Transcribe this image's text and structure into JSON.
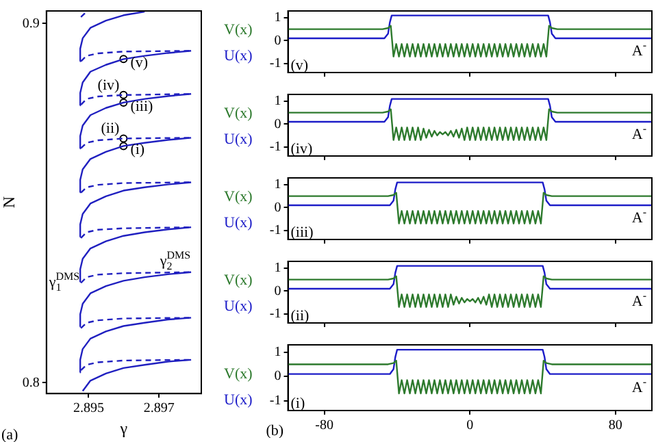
{
  "chart_data": [
    {
      "type": "line",
      "xlim": [
        2.8938,
        2.8982
      ],
      "xticks": [
        2.895,
        2.897
      ],
      "ylim": [
        0.797,
        0.9035
      ],
      "yticks": [
        0.8,
        0.9
      ],
      "xlabel": "γ",
      "ylabel": "N",
      "marker": "none",
      "series": [
        {
          "color": "#2020c0",
          "line_style": "solid",
          "x": [
            2.89475,
            2.89476,
            2.89483,
            2.89505,
            2.89549,
            2.89599,
            2.89659
          ],
          "values": [
            0.8895,
            0.893,
            0.8959,
            0.8988,
            0.9008,
            0.9023,
            0.9033
          ]
        },
        {
          "color": "#2020c0",
          "line_style": "solid",
          "x": [
            2.89475,
            2.89476,
            2.89483,
            2.89505,
            2.89549,
            2.89599,
            2.89659,
            2.89725,
            2.89791
          ],
          "values": [
            0.8772,
            0.8807,
            0.8836,
            0.8866,
            0.8885,
            0.8901,
            0.891,
            0.8918,
            0.8924
          ]
        },
        {
          "color": "#2020c0",
          "line_style": "solid",
          "x": [
            2.89475,
            2.89476,
            2.89483,
            2.89505,
            2.89549,
            2.89599,
            2.89659,
            2.89725,
            2.89791
          ],
          "values": [
            0.8652,
            0.8687,
            0.8716,
            0.8745,
            0.8765,
            0.878,
            0.879,
            0.8798,
            0.8804
          ]
        },
        {
          "color": "#2020c0",
          "line_style": "solid",
          "x": [
            2.89475,
            2.89476,
            2.89483,
            2.89505,
            2.89549,
            2.89599,
            2.89659,
            2.89725,
            2.89791
          ],
          "values": [
            0.853,
            0.8565,
            0.8594,
            0.8623,
            0.8643,
            0.8659,
            0.8668,
            0.8676,
            0.8682
          ]
        },
        {
          "color": "#2020c0",
          "line_style": "solid",
          "x": [
            2.89475,
            2.89476,
            2.89483,
            2.89505,
            2.89549,
            2.89599,
            2.89659,
            2.89725,
            2.89791
          ],
          "values": [
            0.8406,
            0.8441,
            0.847,
            0.8499,
            0.8519,
            0.8535,
            0.8544,
            0.8552,
            0.8558
          ]
        },
        {
          "color": "#2020c0",
          "line_style": "solid",
          "x": [
            2.89475,
            2.89476,
            2.89483,
            2.89505,
            2.89549,
            2.89599,
            2.89659,
            2.89725,
            2.89791
          ],
          "values": [
            0.8281,
            0.8316,
            0.8345,
            0.8374,
            0.8394,
            0.8409,
            0.8419,
            0.8427,
            0.8433
          ]
        },
        {
          "color": "#2020c0",
          "line_style": "solid",
          "x": [
            2.89475,
            2.89476,
            2.89483,
            2.89505,
            2.89549,
            2.89599,
            2.89659,
            2.89725,
            2.89791
          ],
          "values": [
            0.8156,
            0.8191,
            0.822,
            0.8249,
            0.8269,
            0.8284,
            0.8294,
            0.8302,
            0.8308
          ]
        },
        {
          "color": "#2020c0",
          "line_style": "solid",
          "x": [
            2.89475,
            2.89476,
            2.89483,
            2.89505,
            2.89549,
            2.89599,
            2.89659,
            2.89725,
            2.89791
          ],
          "values": [
            0.8029,
            0.8064,
            0.8094,
            0.8123,
            0.8143,
            0.8158,
            0.8167,
            0.8176,
            0.8181
          ]
        },
        {
          "color": "#2020c0",
          "line_style": "solid",
          "x": [
            2.89483,
            2.89505,
            2.89549,
            2.89599,
            2.89659,
            2.89725,
            2.89791
          ],
          "values": [
            0.7977,
            0.8006,
            0.8026,
            0.8041,
            0.805,
            0.8059,
            0.8064
          ]
        },
        {
          "color": "#2020c0",
          "line_style": "dashed",
          "x": [
            2.89478,
            2.89494
          ],
          "values": [
            0.9018,
            0.9033
          ]
        },
        {
          "color": "#2020c0",
          "line_style": "dashed",
          "x": [
            2.89478,
            2.89494,
            2.89527,
            2.89599,
            2.89791
          ],
          "values": [
            0.8895,
            0.891,
            0.8917,
            0.8922,
            0.8924
          ]
        },
        {
          "color": "#2020c0",
          "line_style": "dashed",
          "x": [
            2.89478,
            2.89494,
            2.89527,
            2.89599,
            2.89791
          ],
          "values": [
            0.8774,
            0.879,
            0.8797,
            0.8801,
            0.8804
          ]
        },
        {
          "color": "#2020c0",
          "line_style": "dashed",
          "x": [
            2.89478,
            2.89494,
            2.89527,
            2.89599,
            2.89791
          ],
          "values": [
            0.8653,
            0.8668,
            0.8675,
            0.868,
            0.8682
          ]
        },
        {
          "color": "#2020c0",
          "line_style": "dashed",
          "x": [
            2.89478,
            2.89494,
            2.89527,
            2.89599,
            2.89791
          ],
          "values": [
            0.8529,
            0.8544,
            0.8551,
            0.8556,
            0.8558
          ]
        },
        {
          "color": "#2020c0",
          "line_style": "dashed",
          "x": [
            2.89478,
            2.89494,
            2.89527,
            2.89599,
            2.89791
          ],
          "values": [
            0.8403,
            0.8419,
            0.8426,
            0.843,
            0.8433
          ]
        },
        {
          "color": "#2020c0",
          "line_style": "dashed",
          "x": [
            2.89478,
            2.89494,
            2.89527,
            2.89599,
            2.89791
          ],
          "values": [
            0.8278,
            0.8294,
            0.8301,
            0.8305,
            0.8308
          ]
        },
        {
          "color": "#2020c0",
          "line_style": "dashed",
          "x": [
            2.89478,
            2.89494,
            2.89527,
            2.89599,
            2.89791
          ],
          "values": [
            0.8152,
            0.8167,
            0.8174,
            0.8179,
            0.8181
          ]
        },
        {
          "color": "#2020c0",
          "line_style": "dashed",
          "x": [
            2.89478,
            2.89494,
            2.89527,
            2.89599,
            2.89791
          ],
          "values": [
            0.8035,
            0.805,
            0.8057,
            0.8062,
            0.8064
          ]
        },
        {
          "type": "scatter",
          "color": "#000000",
          "marker": "circle",
          "x": [
            2.89599,
            2.89599,
            2.89599,
            2.89599,
            2.89599
          ],
          "values": [
            0.8901,
            0.8801,
            0.878,
            0.868,
            0.8659
          ]
        }
      ],
      "annotations": [
        "(v)",
        "(iv)",
        "(iii)",
        "(ii)",
        "(i)",
        "γ$_{1}$$^{DMS}$",
        "γ$_{2}$$^{DMS}$",
        "(a)"
      ]
    },
    {
      "type": "line",
      "x": [
        -100,
        -48,
        -45,
        -43.5,
        -42,
        -40.5,
        -39,
        -37.5,
        -36,
        -34.5,
        -33,
        -31.5,
        -30,
        -28.5,
        -27,
        -25.5,
        -24,
        -22.5,
        -21,
        -19.5,
        -18,
        -16.5,
        -15,
        -13.5,
        -12,
        -10.5,
        -9,
        -7.5,
        -6,
        -4.5,
        -3,
        -1.5,
        0,
        1.5,
        3,
        4.5,
        6,
        7.5,
        9,
        10.5,
        12,
        13.5,
        15,
        16.5,
        18,
        19.5,
        21,
        22.5,
        24,
        25.5,
        27,
        28.5,
        30,
        31.5,
        33,
        34.5,
        36,
        37.5,
        39,
        40.5,
        42,
        43.5,
        45,
        48,
        100
      ],
      "xlim": [
        -100,
        100
      ],
      "xticks": [
        -80,
        0,
        80
      ],
      "ylim": [
        -1.4,
        1.3
      ],
      "yticks": [
        -1,
        0,
        1
      ],
      "tick_labels": "y",
      "legend": "left",
      "marker": "none",
      "series": [
        {
          "name": "V(x)",
          "color": "#2d7a2d",
          "values": [
            0.5,
            0.5,
            0.55,
            0.65,
            -0.7,
            -0.15,
            -0.7,
            -0.15,
            -0.7,
            -0.15,
            -0.7,
            -0.15,
            -0.7,
            -0.15,
            -0.7,
            -0.15,
            -0.7,
            -0.15,
            -0.7,
            -0.15,
            -0.7,
            -0.15,
            -0.7,
            -0.15,
            -0.7,
            -0.15,
            -0.7,
            -0.15,
            -0.7,
            -0.15,
            -0.7,
            -0.15,
            -0.7,
            -0.15,
            -0.7,
            -0.15,
            -0.7,
            -0.15,
            -0.7,
            -0.15,
            -0.7,
            -0.15,
            -0.7,
            -0.15,
            -0.7,
            -0.15,
            -0.7,
            -0.15,
            -0.7,
            -0.15,
            -0.7,
            -0.15,
            -0.7,
            -0.15,
            -0.7,
            -0.15,
            -0.7,
            -0.15,
            -0.7,
            -0.15,
            -0.7,
            0.65,
            0.55,
            0.5,
            0.5
          ]
        },
        {
          "name": "U(x)",
          "color": "#1c1cc8",
          "x": [
            -100,
            -47,
            -45,
            -44,
            -43,
            43,
            44,
            45,
            47,
            100
          ],
          "values": [
            0.1,
            0.1,
            0.3,
            0.8,
            1.1,
            1.1,
            0.8,
            0.3,
            0.1,
            0.1
          ]
        }
      ],
      "annotations": [
        "A$^{-}$",
        "(v)"
      ]
    },
    {
      "type": "line",
      "x": [
        -100,
        -48,
        -45,
        -43.5,
        -42,
        -40.5,
        -39,
        -37.5,
        -36,
        -34.5,
        -33,
        -31.5,
        -30,
        -28.5,
        -27,
        -25.5,
        -24,
        -22.5,
        -21,
        -19.5,
        -18,
        -16.5,
        -15,
        -13.5,
        -12,
        -10.5,
        -9,
        -7.5,
        -6,
        -4.5,
        -3,
        -1.5,
        0,
        1.5,
        3,
        4.5,
        6,
        7.5,
        9,
        10.5,
        12,
        13.5,
        15,
        16.5,
        18,
        19.5,
        21,
        22.5,
        24,
        25.5,
        27,
        28.5,
        30,
        31.5,
        33,
        34.5,
        36,
        37.5,
        39,
        40.5,
        42,
        43.5,
        45,
        48,
        100
      ],
      "xlim": [
        -100,
        100
      ],
      "xticks": [
        -80,
        0,
        80
      ],
      "ylim": [
        -1.4,
        1.3
      ],
      "yticks": [
        -1,
        0,
        1
      ],
      "tick_labels": "y",
      "legend": "left",
      "marker": "none",
      "series": [
        {
          "name": "V(x)",
          "color": "#2d7a2d",
          "values": [
            0.5,
            0.5,
            0.55,
            0.65,
            -0.7,
            -0.15,
            -0.7,
            -0.15,
            -0.7,
            -0.15,
            -0.7,
            -0.15,
            -0.7,
            -0.15,
            -0.7,
            -0.2,
            -0.6,
            -0.25,
            -0.55,
            -0.3,
            -0.5,
            -0.35,
            -0.45,
            -0.35,
            -0.5,
            -0.3,
            -0.55,
            -0.25,
            -0.6,
            -0.2,
            -0.7,
            -0.15,
            -0.7,
            -0.15,
            -0.7,
            -0.15,
            -0.7,
            -0.15,
            -0.7,
            -0.15,
            -0.7,
            -0.15,
            -0.7,
            -0.15,
            -0.7,
            -0.15,
            -0.7,
            -0.15,
            -0.7,
            -0.15,
            -0.7,
            -0.15,
            -0.7,
            -0.15,
            -0.7,
            -0.15,
            -0.7,
            -0.15,
            -0.7,
            -0.15,
            -0.7,
            0.65,
            0.55,
            0.5,
            0.5
          ]
        },
        {
          "name": "U(x)",
          "color": "#1c1cc8",
          "x": [
            -100,
            -47,
            -45,
            -44,
            -43,
            43,
            44,
            45,
            47,
            100
          ],
          "values": [
            0.1,
            0.1,
            0.3,
            0.8,
            1.1,
            1.1,
            0.8,
            0.3,
            0.1,
            0.1
          ]
        }
      ],
      "annotations": [
        "A$^{-}$",
        "(iv)"
      ]
    },
    {
      "type": "line",
      "x": [
        -100,
        -45,
        -42,
        -40.5,
        -39,
        -37.5,
        -36,
        -34.5,
        -33,
        -31.5,
        -30,
        -28.5,
        -27,
        -25.5,
        -24,
        -22.5,
        -21,
        -19.5,
        -18,
        -16.5,
        -15,
        -13.5,
        -12,
        -10.5,
        -9,
        -7.5,
        -6,
        -4.5,
        -3,
        -1.5,
        0,
        1.5,
        3,
        4.5,
        6,
        7.5,
        9,
        10.5,
        12,
        13.5,
        15,
        16.5,
        18,
        19.5,
        21,
        22.5,
        24,
        25.5,
        27,
        28.5,
        30,
        31.5,
        33,
        34.5,
        36,
        37.5,
        39,
        40.5,
        42,
        45,
        100
      ],
      "xlim": [
        -100,
        100
      ],
      "xticks": [
        -80,
        0,
        80
      ],
      "ylim": [
        -1.4,
        1.3
      ],
      "yticks": [
        -1,
        0,
        1
      ],
      "tick_labels": "y",
      "legend": "left",
      "marker": "none",
      "series": [
        {
          "name": "V(x)",
          "color": "#2d7a2d",
          "values": [
            0.5,
            0.5,
            0.55,
            0.65,
            -0.7,
            -0.15,
            -0.7,
            -0.15,
            -0.7,
            -0.15,
            -0.7,
            -0.15,
            -0.7,
            -0.15,
            -0.7,
            -0.15,
            -0.7,
            -0.15,
            -0.7,
            -0.15,
            -0.7,
            -0.15,
            -0.7,
            -0.15,
            -0.7,
            -0.15,
            -0.7,
            -0.15,
            -0.7,
            -0.15,
            -0.7,
            -0.15,
            -0.7,
            -0.15,
            -0.7,
            -0.15,
            -0.7,
            -0.15,
            -0.7,
            -0.15,
            -0.7,
            -0.15,
            -0.7,
            -0.15,
            -0.7,
            -0.15,
            -0.7,
            -0.15,
            -0.7,
            -0.15,
            -0.7,
            -0.15,
            -0.7,
            -0.15,
            -0.7,
            -0.15,
            -0.7,
            0.65,
            0.55,
            0.5,
            0.5
          ]
        },
        {
          "name": "U(x)",
          "color": "#1c1cc8",
          "x": [
            -100,
            -44,
            -42,
            -41,
            -40,
            40,
            41,
            42,
            44,
            100
          ],
          "values": [
            0.1,
            0.1,
            0.3,
            0.8,
            1.1,
            1.1,
            0.8,
            0.3,
            0.1,
            0.1
          ]
        }
      ],
      "annotations": [
        "A$^{-}$",
        "(iii)"
      ]
    },
    {
      "type": "line",
      "x": [
        -100,
        -45,
        -42,
        -40.5,
        -39,
        -37.5,
        -36,
        -34.5,
        -33,
        -31.5,
        -30,
        -28.5,
        -27,
        -25.5,
        -24,
        -22.5,
        -21,
        -19.5,
        -18,
        -16.5,
        -15,
        -13.5,
        -12,
        -10.5,
        -9,
        -7.5,
        -6,
        -4.5,
        -3,
        -1.5,
        0,
        1.5,
        3,
        4.5,
        6,
        7.5,
        9,
        10.5,
        12,
        13.5,
        15,
        16.5,
        18,
        19.5,
        21,
        22.5,
        24,
        25.5,
        27,
        28.5,
        30,
        31.5,
        33,
        34.5,
        36,
        37.5,
        39,
        40.5,
        42,
        45,
        100
      ],
      "xlim": [
        -100,
        100
      ],
      "xticks": [
        -80,
        0,
        80
      ],
      "ylim": [
        -1.4,
        1.3
      ],
      "yticks": [
        -1,
        0,
        1
      ],
      "tick_labels": "y",
      "legend": "left",
      "marker": "none",
      "series": [
        {
          "name": "V(x)",
          "color": "#2d7a2d",
          "values": [
            0.5,
            0.5,
            0.55,
            0.65,
            -0.7,
            -0.15,
            -0.7,
            -0.15,
            -0.7,
            -0.15,
            -0.7,
            -0.15,
            -0.7,
            -0.15,
            -0.7,
            -0.15,
            -0.7,
            -0.15,
            -0.7,
            -0.15,
            -0.7,
            -0.15,
            -0.7,
            -0.15,
            -0.6,
            -0.25,
            -0.55,
            -0.3,
            -0.5,
            -0.35,
            -0.45,
            -0.35,
            -0.5,
            -0.3,
            -0.55,
            -0.25,
            -0.6,
            -0.15,
            -0.7,
            -0.15,
            -0.7,
            -0.15,
            -0.7,
            -0.15,
            -0.7,
            -0.15,
            -0.7,
            -0.15,
            -0.7,
            -0.15,
            -0.7,
            -0.15,
            -0.7,
            -0.15,
            -0.7,
            -0.15,
            -0.7,
            0.65,
            0.55,
            0.5,
            0.5
          ]
        },
        {
          "name": "U(x)",
          "color": "#1c1cc8",
          "x": [
            -100,
            -44,
            -42,
            -41,
            -40,
            40,
            41,
            42,
            44,
            100
          ],
          "values": [
            0.1,
            0.1,
            0.3,
            0.8,
            1.1,
            1.1,
            0.8,
            0.3,
            0.1,
            0.1
          ]
        }
      ],
      "annotations": [
        "A$^{-}$",
        "(ii)"
      ]
    },
    {
      "type": "line",
      "x": [
        -100,
        -45,
        -42,
        -40.5,
        -39,
        -37.5,
        -36,
        -34.5,
        -33,
        -31.5,
        -30,
        -28.5,
        -27,
        -25.5,
        -24,
        -22.5,
        -21,
        -19.5,
        -18,
        -16.5,
        -15,
        -13.5,
        -12,
        -10.5,
        -9,
        -7.5,
        -6,
        -4.5,
        -3,
        -1.5,
        0,
        1.5,
        3,
        4.5,
        6,
        7.5,
        9,
        10.5,
        12,
        13.5,
        15,
        16.5,
        18,
        19.5,
        21,
        22.5,
        24,
        25.5,
        27,
        28.5,
        30,
        31.5,
        33,
        34.5,
        36,
        37.5,
        39,
        40.5,
        42,
        45,
        100
      ],
      "xlim": [
        -100,
        100
      ],
      "xticks": [
        -80,
        0,
        80
      ],
      "ylim": [
        -1.4,
        1.3
      ],
      "yticks": [
        -1,
        0,
        1
      ],
      "legend": "left",
      "marker": "none",
      "series": [
        {
          "name": "V(x)",
          "color": "#2d7a2d",
          "values": [
            0.5,
            0.5,
            0.55,
            0.65,
            -0.7,
            -0.15,
            -0.7,
            -0.15,
            -0.7,
            -0.15,
            -0.7,
            -0.15,
            -0.7,
            -0.15,
            -0.7,
            -0.15,
            -0.7,
            -0.15,
            -0.7,
            -0.15,
            -0.7,
            -0.15,
            -0.7,
            -0.15,
            -0.7,
            -0.15,
            -0.7,
            -0.15,
            -0.7,
            -0.15,
            -0.7,
            -0.15,
            -0.7,
            -0.15,
            -0.7,
            -0.15,
            -0.7,
            -0.15,
            -0.7,
            -0.15,
            -0.7,
            -0.15,
            -0.7,
            -0.15,
            -0.7,
            -0.15,
            -0.7,
            -0.15,
            -0.7,
            -0.15,
            -0.7,
            -0.15,
            -0.7,
            -0.15,
            -0.7,
            -0.15,
            -0.7,
            0.65,
            0.55,
            0.5,
            0.5
          ]
        },
        {
          "name": "U(x)",
          "color": "#1c1cc8",
          "x": [
            -100,
            -44,
            -42,
            -41,
            -40,
            40,
            41,
            42,
            44,
            100
          ],
          "values": [
            0.1,
            0.1,
            0.3,
            0.8,
            1.1,
            1.1,
            0.8,
            0.3,
            0.1,
            0.1
          ]
        }
      ],
      "annotations": [
        "A$^{-}$",
        "(i)",
        "(b)"
      ]
    }
  ]
}
